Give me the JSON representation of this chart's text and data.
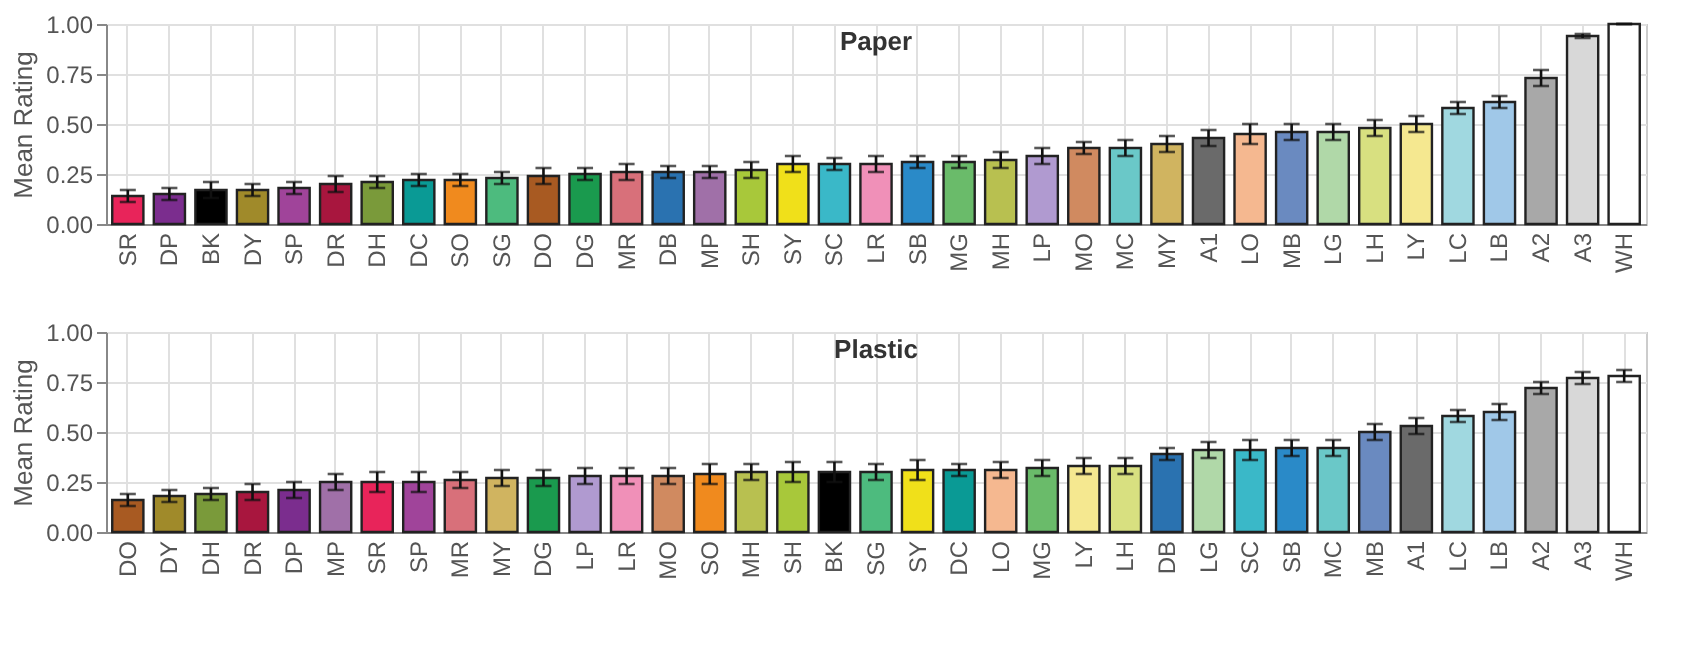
{
  "chart_data": [
    {
      "type": "bar",
      "title": "Paper",
      "ylabel": "Mean Rating",
      "ylim": [
        0,
        1
      ],
      "yticks": [
        {
          "value": 0,
          "label": "0.00"
        },
        {
          "value": 0.25,
          "label": "0.25"
        },
        {
          "value": 0.5,
          "label": "0.50"
        },
        {
          "value": 0.75,
          "label": "0.75"
        },
        {
          "value": 1,
          "label": "1.00"
        }
      ],
      "grid": true,
      "legend": false,
      "categories": [
        "SR",
        "DP",
        "BK",
        "DY",
        "SP",
        "DR",
        "DH",
        "DC",
        "SO",
        "SG",
        "DO",
        "DG",
        "MR",
        "DB",
        "MP",
        "SH",
        "SY",
        "SC",
        "LR",
        "SB",
        "MG",
        "MH",
        "LP",
        "MO",
        "MC",
        "MY",
        "A1",
        "LO",
        "MB",
        "LG",
        "LH",
        "LY",
        "LC",
        "LB",
        "A2",
        "A3",
        "WH"
      ],
      "values": [
        0.14,
        0.15,
        0.17,
        0.17,
        0.18,
        0.2,
        0.21,
        0.22,
        0.22,
        0.23,
        0.24,
        0.25,
        0.26,
        0.26,
        0.26,
        0.27,
        0.3,
        0.3,
        0.3,
        0.31,
        0.31,
        0.32,
        0.34,
        0.38,
        0.38,
        0.4,
        0.43,
        0.45,
        0.46,
        0.46,
        0.48,
        0.5,
        0.58,
        0.61,
        0.73,
        0.94,
        1.0
      ],
      "errors": [
        0.03,
        0.03,
        0.04,
        0.03,
        0.03,
        0.04,
        0.03,
        0.03,
        0.03,
        0.03,
        0.04,
        0.03,
        0.04,
        0.03,
        0.03,
        0.04,
        0.04,
        0.03,
        0.04,
        0.03,
        0.03,
        0.04,
        0.04,
        0.03,
        0.04,
        0.04,
        0.04,
        0.05,
        0.04,
        0.04,
        0.04,
        0.04,
        0.03,
        0.03,
        0.04,
        0.01,
        0.0
      ],
      "colors": [
        "#e8245a",
        "#7b2d8e",
        "#000000",
        "#a08a2a",
        "#a0449a",
        "#a8163e",
        "#7a9a3a",
        "#0a9a95",
        "#f08a1e",
        "#4dbb7e",
        "#a85a22",
        "#1a9a4e",
        "#d8707a",
        "#2a72b0",
        "#a070a8",
        "#a8c83a",
        "#f0e01a",
        "#3ab8c8",
        "#f090b8",
        "#2a8ac8",
        "#6abb6a",
        "#b8c050",
        "#b09ad0",
        "#d08a60",
        "#6ac8c8",
        "#d0b460",
        "#6a6a6a",
        "#f5b890",
        "#6a8ac0",
        "#b0d8a8",
        "#d8e080",
        "#f5e890",
        "#a0d8e0",
        "#a0c8e8",
        "#a8a8a8",
        "#d8d8d8",
        "#ffffff"
      ]
    },
    {
      "type": "bar",
      "title": "Plastic",
      "ylabel": "Mean Rating",
      "ylim": [
        0,
        1
      ],
      "yticks": [
        {
          "value": 0,
          "label": "0.00"
        },
        {
          "value": 0.25,
          "label": "0.25"
        },
        {
          "value": 0.5,
          "label": "0.50"
        },
        {
          "value": 0.75,
          "label": "0.75"
        },
        {
          "value": 1,
          "label": "1.00"
        }
      ],
      "grid": true,
      "legend": false,
      "categories": [
        "DO",
        "DY",
        "DH",
        "DR",
        "DP",
        "MP",
        "SR",
        "SP",
        "MR",
        "MY",
        "DG",
        "LP",
        "LR",
        "MO",
        "SO",
        "MH",
        "SH",
        "BK",
        "SG",
        "SY",
        "DC",
        "LO",
        "MG",
        "LY",
        "LH",
        "DB",
        "LG",
        "SC",
        "SB",
        "MC",
        "MB",
        "A1",
        "LC",
        "LB",
        "A2",
        "A3",
        "WH"
      ],
      "values": [
        0.16,
        0.18,
        0.19,
        0.2,
        0.21,
        0.25,
        0.25,
        0.25,
        0.26,
        0.27,
        0.27,
        0.28,
        0.28,
        0.28,
        0.29,
        0.3,
        0.3,
        0.3,
        0.3,
        0.31,
        0.31,
        0.31,
        0.32,
        0.33,
        0.33,
        0.39,
        0.41,
        0.41,
        0.42,
        0.42,
        0.5,
        0.53,
        0.58,
        0.6,
        0.72,
        0.77,
        0.78
      ],
      "errors": [
        0.03,
        0.03,
        0.03,
        0.04,
        0.04,
        0.04,
        0.05,
        0.05,
        0.04,
        0.04,
        0.04,
        0.04,
        0.04,
        0.04,
        0.05,
        0.04,
        0.05,
        0.05,
        0.04,
        0.05,
        0.03,
        0.04,
        0.04,
        0.04,
        0.04,
        0.03,
        0.04,
        0.05,
        0.04,
        0.04,
        0.04,
        0.04,
        0.03,
        0.04,
        0.03,
        0.03,
        0.03
      ],
      "colors": [
        "#a85a22",
        "#a08a2a",
        "#7a9a3a",
        "#a8163e",
        "#7b2d8e",
        "#a070a8",
        "#e8245a",
        "#a0449a",
        "#d8707a",
        "#d0b460",
        "#1a9a4e",
        "#b09ad0",
        "#f090b8",
        "#d08a60",
        "#f08a1e",
        "#b8c050",
        "#a8c83a",
        "#000000",
        "#4dbb7e",
        "#f0e01a",
        "#0a9a95",
        "#f5b890",
        "#6abb6a",
        "#f5e890",
        "#d8e080",
        "#2a72b0",
        "#b0d8a8",
        "#3ab8c8",
        "#2a8ac8",
        "#6ac8c8",
        "#6a8ac0",
        "#6a6a6a",
        "#a0d8e0",
        "#a0c8e8",
        "#a8a8a8",
        "#d8d8d8",
        "#ffffff"
      ]
    }
  ]
}
